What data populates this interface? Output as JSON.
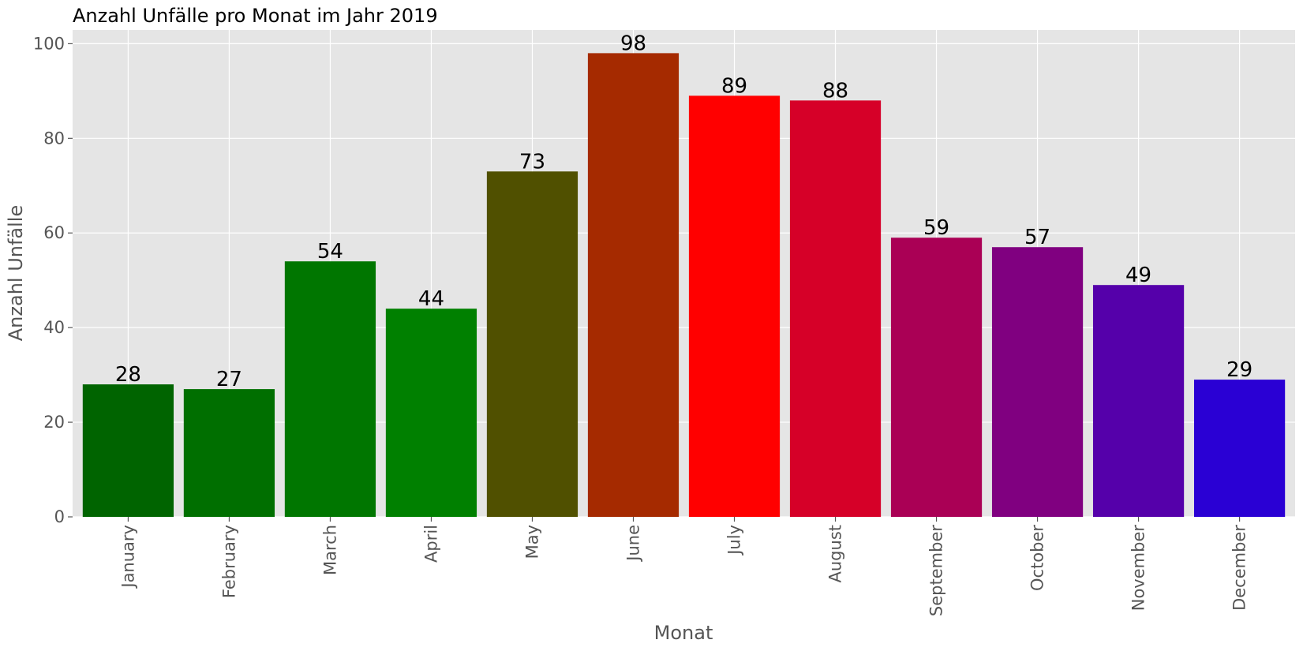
{
  "chart_data": {
    "type": "bar",
    "title": "Anzahl Unfälle pro Monat im Jahr 2019",
    "xlabel": "Monat",
    "ylabel": "Anzahl Unfälle",
    "categories": [
      "January",
      "February",
      "March",
      "April",
      "May",
      "June",
      "July",
      "August",
      "September",
      "October",
      "November",
      "December"
    ],
    "values": [
      28,
      27,
      54,
      44,
      73,
      98,
      89,
      88,
      59,
      57,
      49,
      29
    ],
    "colors": [
      "#006400",
      "#006f00",
      "#007600",
      "#008000",
      "#505000",
      "#a52a00",
      "#ff0000",
      "#d60028",
      "#aa0055",
      "#800080",
      "#5500aa",
      "#2a00d4"
    ],
    "data_labels": [
      "28",
      "27",
      "54",
      "44",
      "73",
      "98",
      "89",
      "88",
      "59",
      "57",
      "49",
      "29"
    ],
    "ylim": [
      0,
      102.9
    ],
    "yticks": [
      0,
      20,
      40,
      60,
      80,
      100
    ],
    "ytick_labels": [
      "0",
      "20",
      "40",
      "60",
      "80",
      "100"
    ],
    "grid": true,
    "plot_background": "#e5e5e5",
    "grid_color": "#ffffff",
    "text_color": "#555555"
  }
}
